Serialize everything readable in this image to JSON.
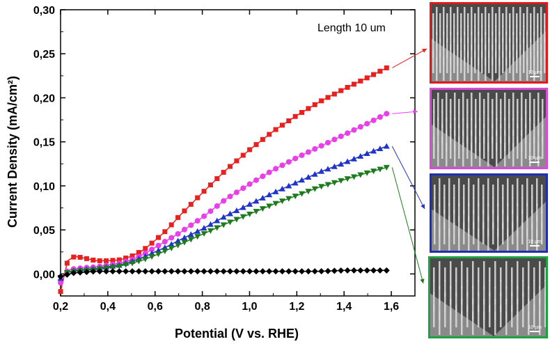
{
  "chart_data": {
    "type": "scatter",
    "title": "",
    "annotation": "Length 10 um",
    "xlabel": "Potential (V vs. RHE)",
    "ylabel": "Current Density (mA/cm²)",
    "xlim": [
      0.2,
      1.7
    ],
    "ylim": [
      -0.025,
      0.3
    ],
    "xticks": [
      "0,2",
      "0,4",
      "0,6",
      "0,8",
      "1,0",
      "1,2",
      "1,4",
      "1,6"
    ],
    "xtick_values": [
      0.2,
      0.4,
      0.6,
      0.8,
      1.0,
      1.2,
      1.4,
      1.6
    ],
    "yticks": [
      "0,00",
      "0,05",
      "0,10",
      "0,15",
      "0,20",
      "0,25",
      "0,30"
    ],
    "ytick_values": [
      0.0,
      0.05,
      0.1,
      0.15,
      0.2,
      0.25,
      0.3
    ],
    "legend": "none",
    "grid": false,
    "series": [
      {
        "color": "#e8201e",
        "marker": "square",
        "x": [
          0.2,
          0.23,
          0.26,
          0.3,
          0.35,
          0.4,
          0.45,
          0.5,
          0.55,
          0.6,
          0.65,
          0.7,
          0.8,
          0.9,
          1.0,
          1.1,
          1.2,
          1.3,
          1.4,
          1.5,
          1.58
        ],
        "y": [
          -0.02,
          0.015,
          0.02,
          0.018,
          0.015,
          0.015,
          0.016,
          0.02,
          0.027,
          0.038,
          0.05,
          0.065,
          0.092,
          0.118,
          0.141,
          0.162,
          0.18,
          0.196,
          0.21,
          0.223,
          0.234
        ]
      },
      {
        "color": "#e83fe8",
        "marker": "circle",
        "x": [
          0.2,
          0.23,
          0.26,
          0.3,
          0.35,
          0.4,
          0.45,
          0.5,
          0.55,
          0.6,
          0.65,
          0.7,
          0.8,
          0.9,
          1.0,
          1.1,
          1.2,
          1.3,
          1.4,
          1.5,
          1.58
        ],
        "y": [
          -0.01,
          0.004,
          0.006,
          0.007,
          0.008,
          0.01,
          0.012,
          0.016,
          0.022,
          0.03,
          0.038,
          0.046,
          0.064,
          0.085,
          0.102,
          0.118,
          0.132,
          0.145,
          0.158,
          0.171,
          0.182
        ]
      },
      {
        "color": "#1f35c9",
        "marker": "triangle-up",
        "x": [
          0.2,
          0.23,
          0.26,
          0.3,
          0.35,
          0.4,
          0.45,
          0.5,
          0.55,
          0.6,
          0.65,
          0.7,
          0.8,
          0.9,
          1.0,
          1.1,
          1.2,
          1.3,
          1.4,
          1.5,
          1.58
        ],
        "y": [
          -0.005,
          0.002,
          0.004,
          0.005,
          0.006,
          0.008,
          0.01,
          0.014,
          0.019,
          0.025,
          0.031,
          0.038,
          0.051,
          0.066,
          0.079,
          0.092,
          0.104,
          0.116,
          0.126,
          0.137,
          0.145
        ]
      },
      {
        "color": "#1d7a1d",
        "marker": "triangle-down",
        "x": [
          0.2,
          0.23,
          0.26,
          0.3,
          0.35,
          0.4,
          0.45,
          0.5,
          0.55,
          0.6,
          0.65,
          0.7,
          0.8,
          0.9,
          1.0,
          1.1,
          1.2,
          1.3,
          1.4,
          1.5,
          1.58
        ],
        "y": [
          -0.004,
          0.002,
          0.003,
          0.004,
          0.005,
          0.007,
          0.009,
          0.012,
          0.016,
          0.021,
          0.027,
          0.033,
          0.045,
          0.057,
          0.068,
          0.079,
          0.089,
          0.099,
          0.107,
          0.115,
          0.121
        ]
      },
      {
        "color": "#000000",
        "marker": "diamond",
        "x": [
          0.2,
          0.25,
          0.3,
          0.35,
          0.4,
          0.45,
          0.5,
          0.6,
          0.7,
          0.8,
          0.9,
          1.0,
          1.1,
          1.2,
          1.3,
          1.4,
          1.5,
          1.58
        ],
        "y": [
          -0.003,
          0.001,
          0.002,
          0.003,
          0.003,
          0.003,
          0.003,
          0.003,
          0.003,
          0.003,
          0.003,
          0.003,
          0.003,
          0.003,
          0.003,
          0.004,
          0.004,
          0.004
        ]
      }
    ]
  },
  "sem_images": [
    {
      "scale_label": "10 µm",
      "border_color": "#e0191b"
    },
    {
      "scale_label": "10 µm",
      "border_color": "#d94ad9"
    },
    {
      "scale_label": "10 µm",
      "border_color": "#1f2fb3"
    },
    {
      "scale_label": "10 µm",
      "border_color": "#20a040"
    }
  ]
}
